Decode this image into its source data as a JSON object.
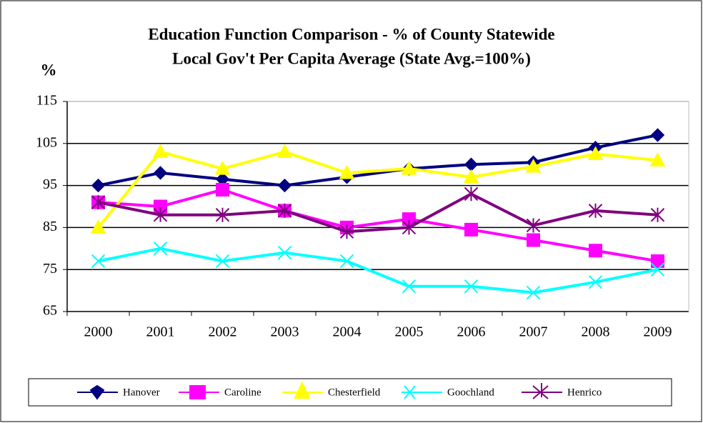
{
  "chart_data": {
    "type": "line",
    "title": "Education Function Comparison - % of County Statewide",
    "subtitle": "Local Gov't Per Capita Average (State Avg.=100%)",
    "y_label": "%",
    "categories": [
      "2000",
      "2001",
      "2002",
      "2003",
      "2004",
      "2005",
      "2006",
      "2007",
      "2008",
      "2009"
    ],
    "series": [
      {
        "name": "Hanover",
        "color": "#000080",
        "marker": "diamond",
        "values": [
          95,
          98,
          96.5,
          95,
          97,
          99,
          100,
          100.5,
          104,
          107
        ]
      },
      {
        "name": "Caroline",
        "color": "#ff00ff",
        "marker": "square",
        "values": [
          91,
          90,
          94,
          89,
          85,
          87,
          84.5,
          82,
          79.5,
          77
        ]
      },
      {
        "name": "Chesterfield",
        "color": "#ffff00",
        "marker": "triangle",
        "values": [
          85,
          103,
          99,
          103,
          98,
          99,
          97,
          99.5,
          102.5,
          101
        ]
      },
      {
        "name": "Goochland",
        "color": "#00ffff",
        "marker": "x",
        "values": [
          77,
          80,
          77,
          79,
          77,
          71,
          71,
          69.5,
          72,
          75
        ]
      },
      {
        "name": "Henrico",
        "color": "#800080",
        "marker": "star",
        "values": [
          91,
          88,
          88,
          89,
          84,
          85,
          93,
          85.5,
          89,
          88
        ]
      }
    ],
    "ylim": [
      65,
      115
    ],
    "yticks": [
      65,
      75,
      85,
      95,
      105,
      115
    ],
    "grid": true,
    "legend": "bottom"
  }
}
